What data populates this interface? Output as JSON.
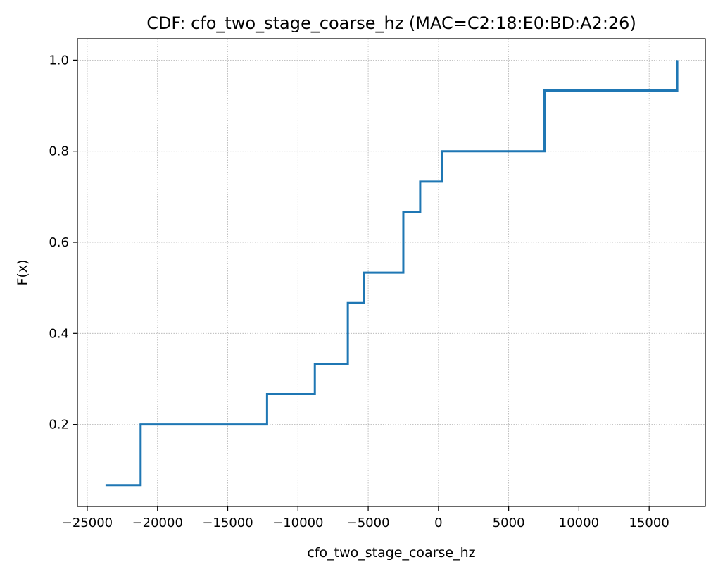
{
  "chart_data": {
    "type": "line",
    "step": "post",
    "title": "CDF: cfo_two_stage_coarse_hz (MAC=C2:18:E0:BD:A2:26)",
    "xlabel": "cfo_two_stage_coarse_hz",
    "ylabel": "F(x)",
    "xlim": [
      -25700,
      19000
    ],
    "ylim": [
      0.02,
      1.047
    ],
    "grid": true,
    "color": "#1f77b4",
    "x_ticks": [
      -25000,
      -20000,
      -15000,
      -10000,
      -5000,
      0,
      5000,
      10000,
      15000
    ],
    "x_tick_labels": [
      "−25000",
      "−20000",
      "−15000",
      "−10000",
      "−5000",
      "0",
      "5000",
      "10000",
      "15000"
    ],
    "y_ticks": [
      0.2,
      0.4,
      0.6,
      0.8,
      1.0
    ],
    "y_tick_labels": [
      "0.2",
      "0.4",
      "0.6",
      "0.8",
      "1.0"
    ],
    "series": [
      {
        "x": [
          -23700,
          -21200,
          -12200,
          -8800,
          -6450,
          -5300,
          -2500,
          -1300,
          250,
          7550,
          17000
        ],
        "y": [
          0.0667,
          0.2,
          0.2667,
          0.3333,
          0.4667,
          0.5333,
          0.6667,
          0.7333,
          0.8,
          0.9333,
          1.0
        ]
      }
    ]
  }
}
